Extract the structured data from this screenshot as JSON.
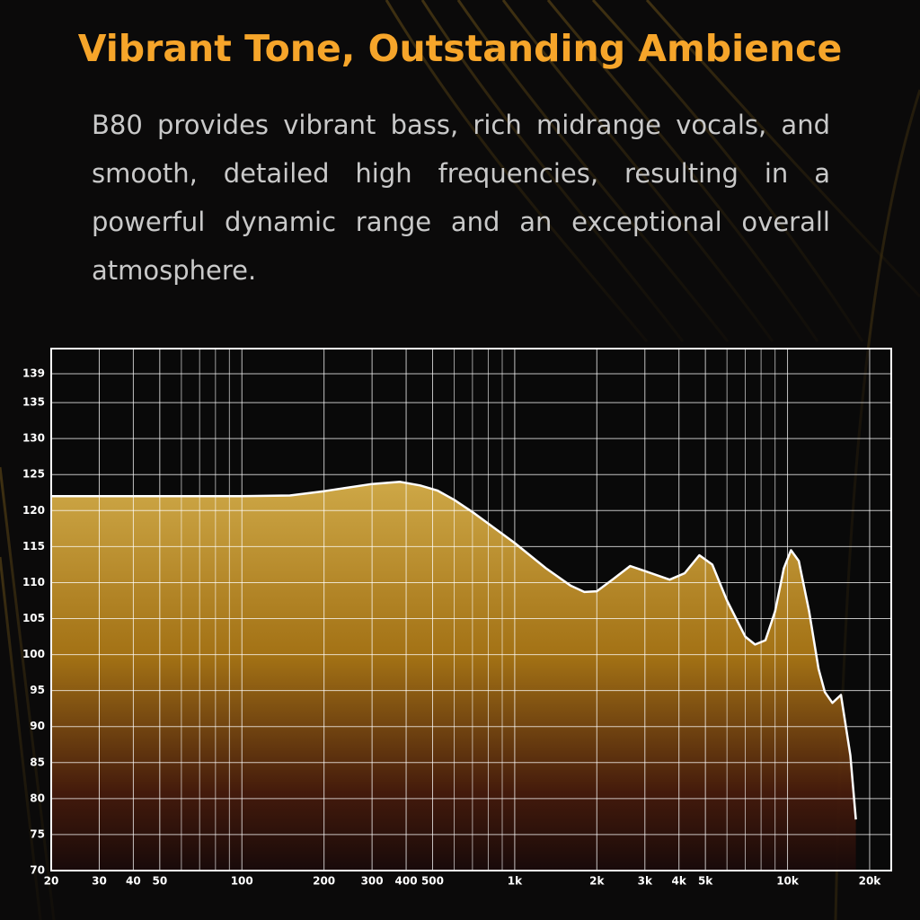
{
  "chart_data": {
    "type": "area",
    "title": "Vibrant Tone, Outstanding Ambience",
    "subtitle": "B80 provides vibrant bass, rich midrange vocals, and smooth, detailed high frequencies, resulting in a powerful dynamic range and an exceptional overall atmosphere.",
    "xscale": "log",
    "grid": true,
    "color": "#ffffff",
    "x": [
      20,
      100,
      150,
      200,
      300,
      380,
      450,
      520,
      600,
      700,
      1000,
      1300,
      1600,
      1800,
      2000,
      2300,
      2650,
      3000,
      3700,
      4200,
      4750,
      5300,
      6000,
      7000,
      7600,
      8300,
      9000,
      9700,
      10300,
      11000,
      12000,
      13000,
      13700,
      14600,
      15700,
      17000,
      17800
    ],
    "values": [
      122,
      122,
      122.1,
      122.7,
      123.7,
      124,
      123.5,
      122.8,
      121.5,
      119.8,
      115.5,
      112,
      109.6,
      108.7,
      108.8,
      110.5,
      112.3,
      111.6,
      110.4,
      111.3,
      113.8,
      112.5,
      107.5,
      102.5,
      101.4,
      102,
      106,
      112,
      114.5,
      113,
      106,
      98,
      94.8,
      93.3,
      94.4,
      86,
      77.1
    ],
    "xlim": [
      20,
      24000
    ],
    "ylim": [
      70,
      142.5
    ],
    "xticks": [
      20,
      30,
      40,
      50,
      100,
      200,
      300,
      400,
      500,
      {
        "value": 1000,
        "label": "1k"
      },
      {
        "value": 2000,
        "label": "2k"
      },
      {
        "value": 3000,
        "label": "3k"
      },
      {
        "value": 4000,
        "label": "4k"
      },
      {
        "value": 5000,
        "label": "5k"
      },
      {
        "value": 10000,
        "label": "10k"
      },
      {
        "value": 20000,
        "label": "20k"
      }
    ],
    "xminor": [
      60,
      70,
      80,
      90,
      600,
      700,
      800,
      900,
      6000,
      7000,
      8000,
      9000
    ],
    "yticks": [
      70,
      75,
      80,
      85,
      90,
      95,
      100,
      105,
      110,
      115,
      120,
      125,
      130,
      135,
      139
    ]
  }
}
